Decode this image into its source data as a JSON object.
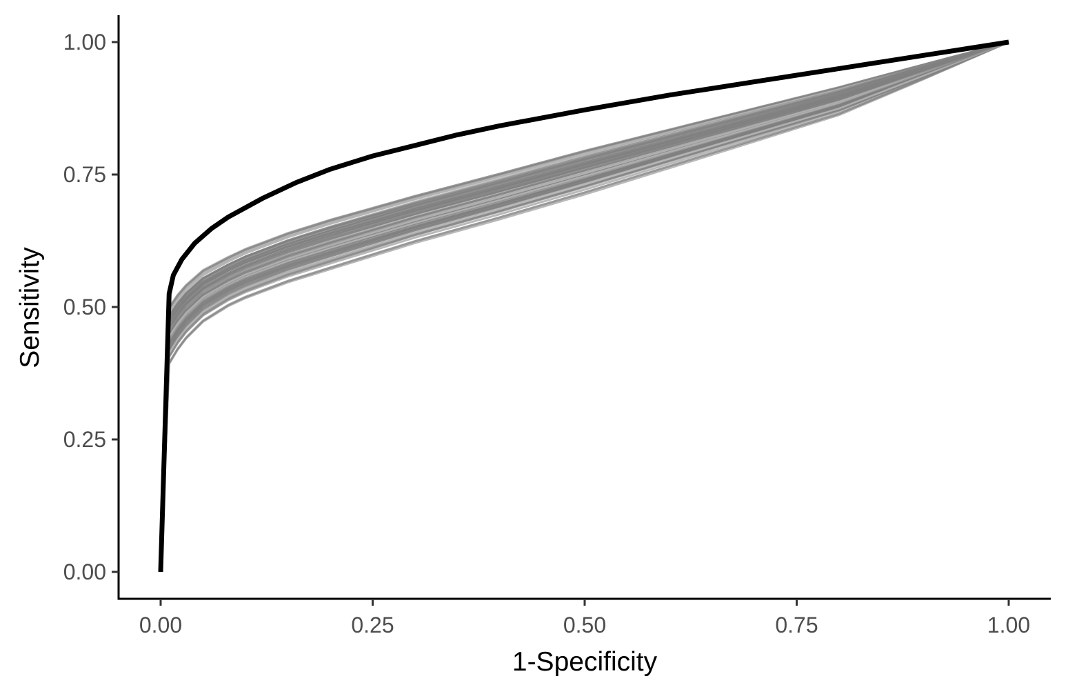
{
  "chart_data": {
    "type": "line",
    "title": "",
    "xlabel": "1-Specificity",
    "ylabel": "Sensitivity",
    "xlim": [
      0,
      1
    ],
    "ylim": [
      0,
      1
    ],
    "x_ticks": [
      0,
      0.25,
      0.5,
      0.75,
      1
    ],
    "x_tick_labels": [
      "0.00",
      "0.25",
      "0.50",
      "0.75",
      "1.00"
    ],
    "y_ticks": [
      0,
      0.25,
      0.5,
      0.75,
      1
    ],
    "y_tick_labels": [
      "0.00",
      "0.25",
      "0.50",
      "0.75",
      "1.00"
    ],
    "grid": false,
    "legend": "none",
    "colors": {
      "main_curve": "#000000",
      "bootstrap_curves": "#808080",
      "axis": "#000000",
      "tick_label": "#4d4d4d"
    },
    "main_curve": {
      "x": [
        0,
        0.01,
        0.015,
        0.025,
        0.04,
        0.06,
        0.08,
        0.12,
        0.16,
        0.2,
        0.25,
        0.3,
        0.35,
        0.4,
        0.5,
        0.6,
        0.7,
        0.8,
        0.9,
        1.0
      ],
      "y": [
        0,
        0.525,
        0.56,
        0.59,
        0.62,
        0.648,
        0.67,
        0.705,
        0.735,
        0.76,
        0.785,
        0.805,
        0.825,
        0.842,
        0.872,
        0.9,
        0.925,
        0.95,
        0.975,
        1.0
      ]
    },
    "bootstrap_band": {
      "n_curves": 80,
      "x": [
        0,
        0.01,
        0.025,
        0.05,
        0.08,
        0.1,
        0.15,
        0.2,
        0.3,
        0.4,
        0.5,
        0.6,
        0.7,
        0.8,
        0.9,
        1.0
      ],
      "y_low": [
        0,
        0.39,
        0.43,
        0.47,
        0.5,
        0.515,
        0.545,
        0.57,
        0.62,
        0.665,
        0.712,
        0.762,
        0.812,
        0.862,
        0.93,
        1.0
      ],
      "y_high": [
        0,
        0.5,
        0.535,
        0.57,
        0.595,
        0.61,
        0.64,
        0.665,
        0.71,
        0.752,
        0.795,
        0.835,
        0.875,
        0.915,
        0.958,
        1.0
      ]
    }
  }
}
